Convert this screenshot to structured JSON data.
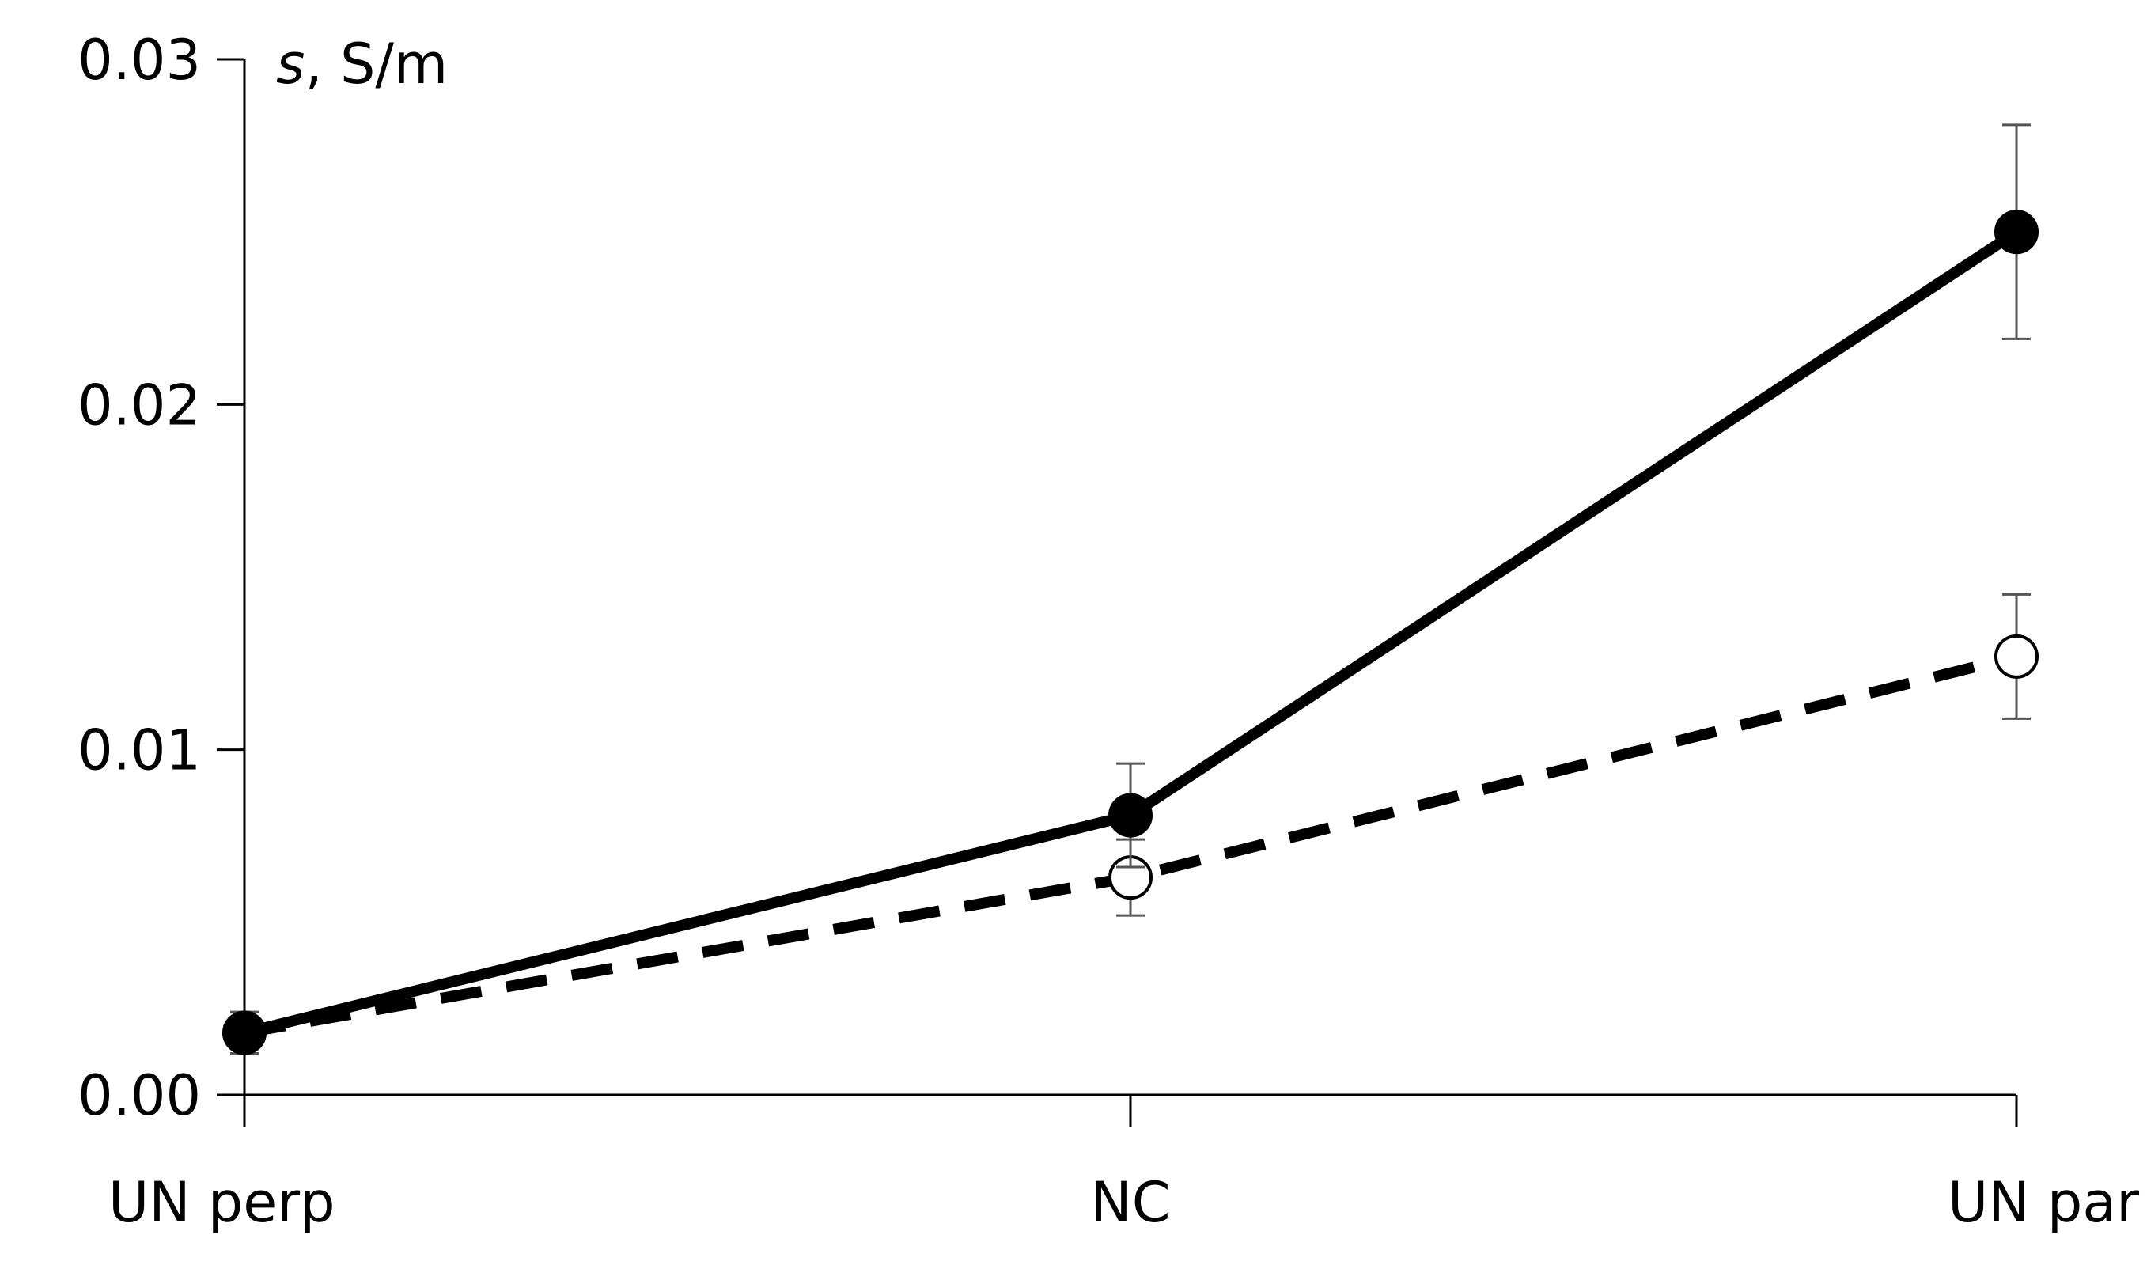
{
  "chart_data": {
    "type": "line",
    "categories": [
      "UN perp",
      "NC",
      "UN par"
    ],
    "ylabel_var": "s",
    "ylabel_unit": ", S/m",
    "ylim": [
      0.0,
      0.03
    ],
    "yticks": [
      0.0,
      0.01,
      0.02,
      0.03
    ],
    "ytick_labels": [
      "0.00",
      "0.01",
      "0.02",
      "0.03"
    ],
    "grid": false,
    "series": [
      {
        "style": "solid",
        "marker": "filled-circle",
        "color": "#000000",
        "values": [
          0.0018,
          0.0081,
          0.025
        ],
        "errors": [
          0.0006,
          0.0015,
          0.0031
        ]
      },
      {
        "style": "dashed",
        "marker": "open-circle",
        "color": "#000000",
        "values": [
          0.0018,
          0.0063,
          0.0127
        ],
        "errors": [
          0.0006,
          0.0011,
          0.0018
        ]
      }
    ]
  }
}
